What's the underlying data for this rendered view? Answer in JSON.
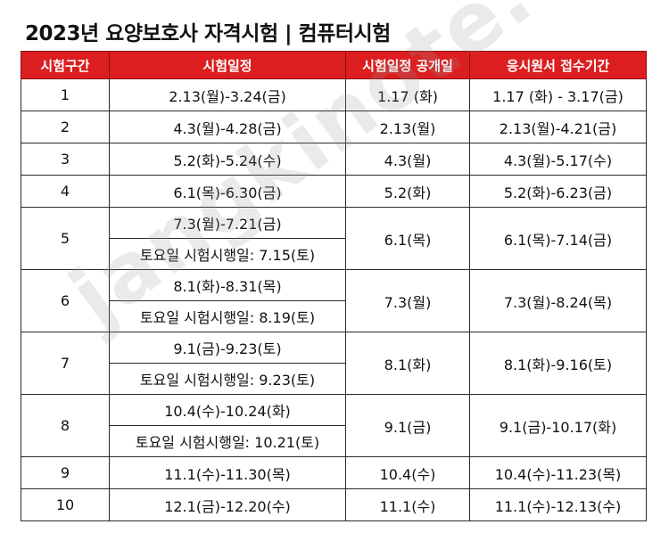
{
  "title": "2023년 요양보호사 자격시험 | 컴퓨터시험",
  "headers": [
    "시험구간",
    "시험일정",
    "시험일정 공개일",
    "응시원서 접수기간"
  ],
  "rows": [
    {
      "no": "1",
      "schedule": "2.13(월)-3.24(금)",
      "announce": "1.17 (화)",
      "apply": "1.17 (화) - 3.17(금)"
    },
    {
      "no": "2",
      "schedule": "4.3(월)-4.28(금)",
      "announce": "2.13(월)",
      "apply": "2.13(월)-4.21(금)"
    },
    {
      "no": "3",
      "schedule": "5.2(화)-5.24(수)",
      "announce": "4.3(월)",
      "apply": "4.3(월)-5.17(수)"
    },
    {
      "no": "4",
      "schedule": "6.1(목)-6.30(금)",
      "announce": "5.2(화)",
      "apply": "5.2(화)-6.23(금)"
    },
    {
      "no": "5",
      "schedule": "7.3(월)-7.21(금)",
      "saturday": "토요일 시험시행일: 7.15(토)",
      "announce": "6.1(목)",
      "apply": "6.1(목)-7.14(금)"
    },
    {
      "no": "6",
      "schedule": "8.1(화)-8.31(목)",
      "saturday": "토요일 시험시행일: 8.19(토)",
      "announce": "7.3(월)",
      "apply": "7.3(월)-8.24(목)"
    },
    {
      "no": "7",
      "schedule": "9.1(금)-9.23(토)",
      "saturday": "토요일 시험시행일: 9.23(토)",
      "announce": "8.1(화)",
      "apply": "8.1(화)-9.16(토)"
    },
    {
      "no": "8",
      "schedule": "10.4(수)-10.24(화)",
      "saturday": "토요일 시험시행일: 10.21(토)",
      "announce": "9.1(금)",
      "apply": "9.1(금)-10.17(화)"
    },
    {
      "no": "9",
      "schedule": "11.1(수)-11.30(목)",
      "announce": "10.4(수)",
      "apply": "10.4(수)-11.23(목)"
    },
    {
      "no": "10",
      "schedule": "12.1(금)-12.20(수)",
      "announce": "11.1(수)",
      "apply": "11.1(수)-12.13(수)"
    }
  ],
  "watermark": "jangkinote.com",
  "colors": {
    "header_bg": "#dc1e20",
    "header_text": "#ffffff",
    "border": "#2a2a2a"
  }
}
